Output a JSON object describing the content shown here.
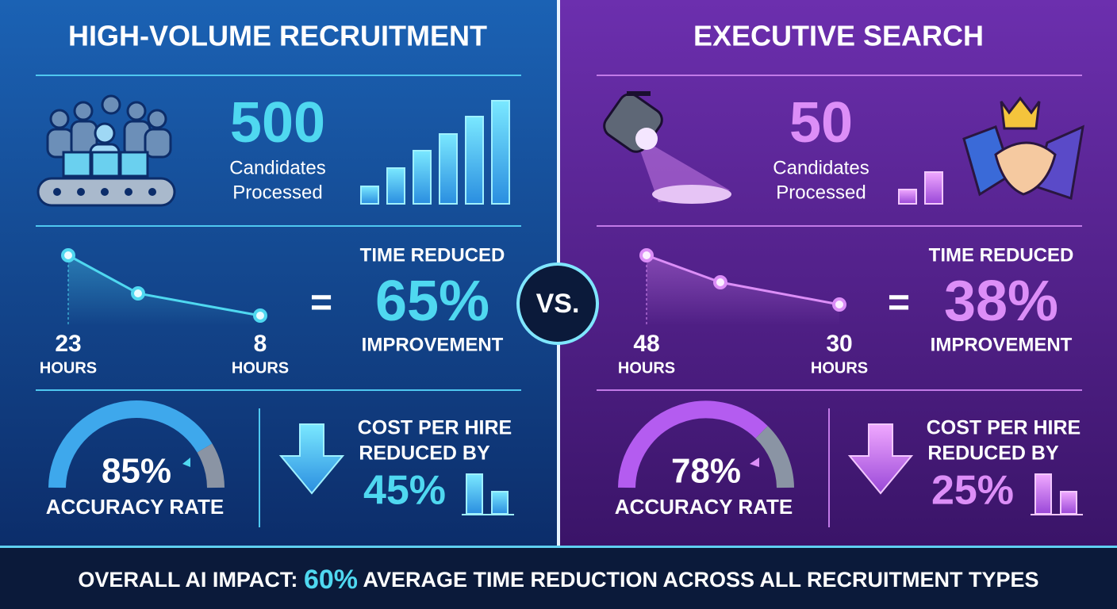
{
  "left": {
    "title": "HIGH-VOLUME RECRUITMENT",
    "candidates": {
      "value": "500",
      "line1": "Candidates",
      "line2": "Processed"
    },
    "time": {
      "start_value": "23",
      "start_unit": "HOURS",
      "end_value": "8",
      "end_unit": "HOURS",
      "equals": "=",
      "heading": "TIME REDUCED",
      "value": "65%",
      "caption": "IMPROVEMENT"
    },
    "accuracy": {
      "value": "85%",
      "label": "ACCURACY RATE"
    },
    "cost": {
      "line1": "COST PER HIRE",
      "line2": "REDUCED BY",
      "value": "45%"
    }
  },
  "vs": "VS.",
  "right": {
    "title": "EXECUTIVE SEARCH",
    "candidates": {
      "value": "50",
      "line1": "Candidates",
      "line2": "Processed"
    },
    "time": {
      "start_value": "48",
      "start_unit": "HOURS",
      "end_value": "30",
      "end_unit": "HOURS",
      "equals": "=",
      "heading": "TIME REDUCED",
      "value": "38%",
      "caption": "IMPROVEMENT"
    },
    "accuracy": {
      "value": "78%",
      "label": "ACCURACY RATE"
    },
    "cost": {
      "line1": "COST PER HIRE",
      "line2": "REDUCED BY",
      "value": "25%"
    }
  },
  "footer": {
    "prefix": "OVERALL AI IMPACT:",
    "highlight": "60%",
    "suffix": "AVERAGE TIME REDUCTION ACROSS ALL RECRUITMENT TYPES"
  }
}
